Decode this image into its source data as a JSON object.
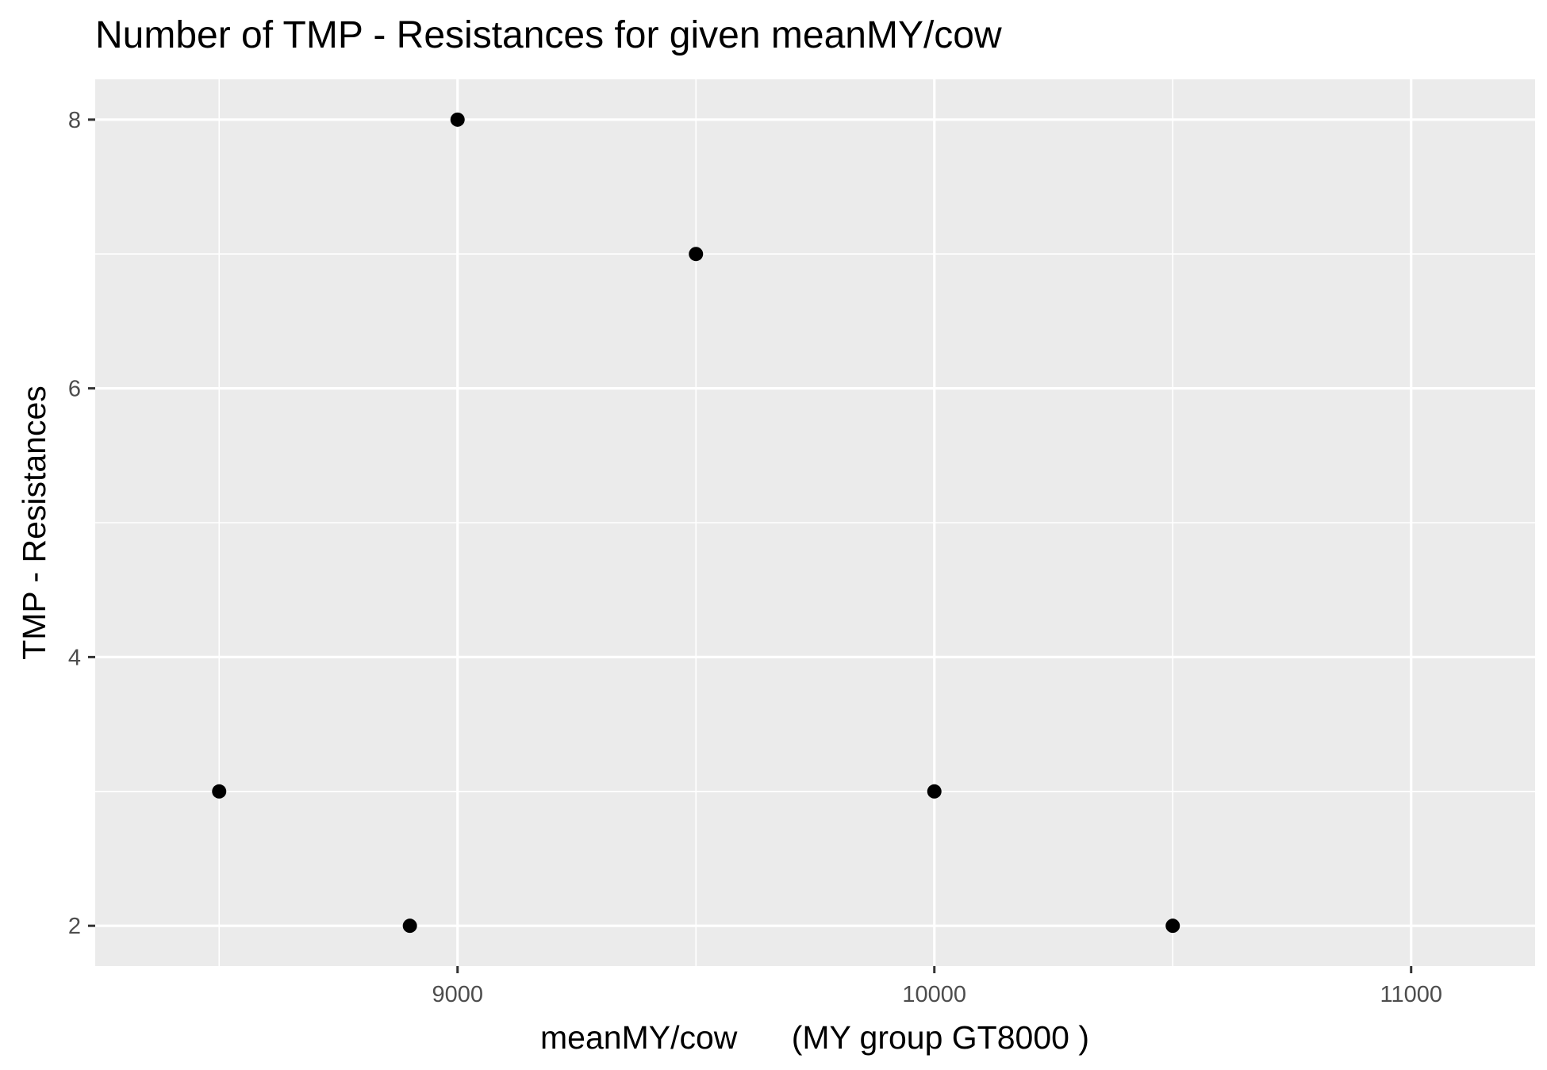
{
  "chart_data": {
    "type": "scatter",
    "title": "Number of TMP - Resistances for given meanMY/cow",
    "xlabel": "meanMY/cow      (MY group GT8000 )",
    "ylabel": "TMP - Resistances",
    "xlim": [
      8240,
      11260
    ],
    "ylim": [
      1.7,
      8.3
    ],
    "x_ticks": [
      9000,
      10000,
      11000
    ],
    "x_tick_labels": [
      "9000",
      "10000",
      "11000"
    ],
    "x_minor": [
      8500,
      9500,
      10500
    ],
    "y_ticks": [
      2,
      4,
      6,
      8
    ],
    "y_tick_labels": [
      "2",
      "4",
      "6",
      "8"
    ],
    "y_minor": [
      3,
      5,
      7
    ],
    "grid": true,
    "points": [
      {
        "x": 8500,
        "y": 3
      },
      {
        "x": 8900,
        "y": 2
      },
      {
        "x": 9000,
        "y": 8
      },
      {
        "x": 9500,
        "y": 7
      },
      {
        "x": 10000,
        "y": 3
      },
      {
        "x": 10500,
        "y": 2
      }
    ],
    "colors": {
      "panel": "#ebebeb",
      "grid": "#ffffff",
      "point": "#000000",
      "tick": "#333333"
    }
  }
}
